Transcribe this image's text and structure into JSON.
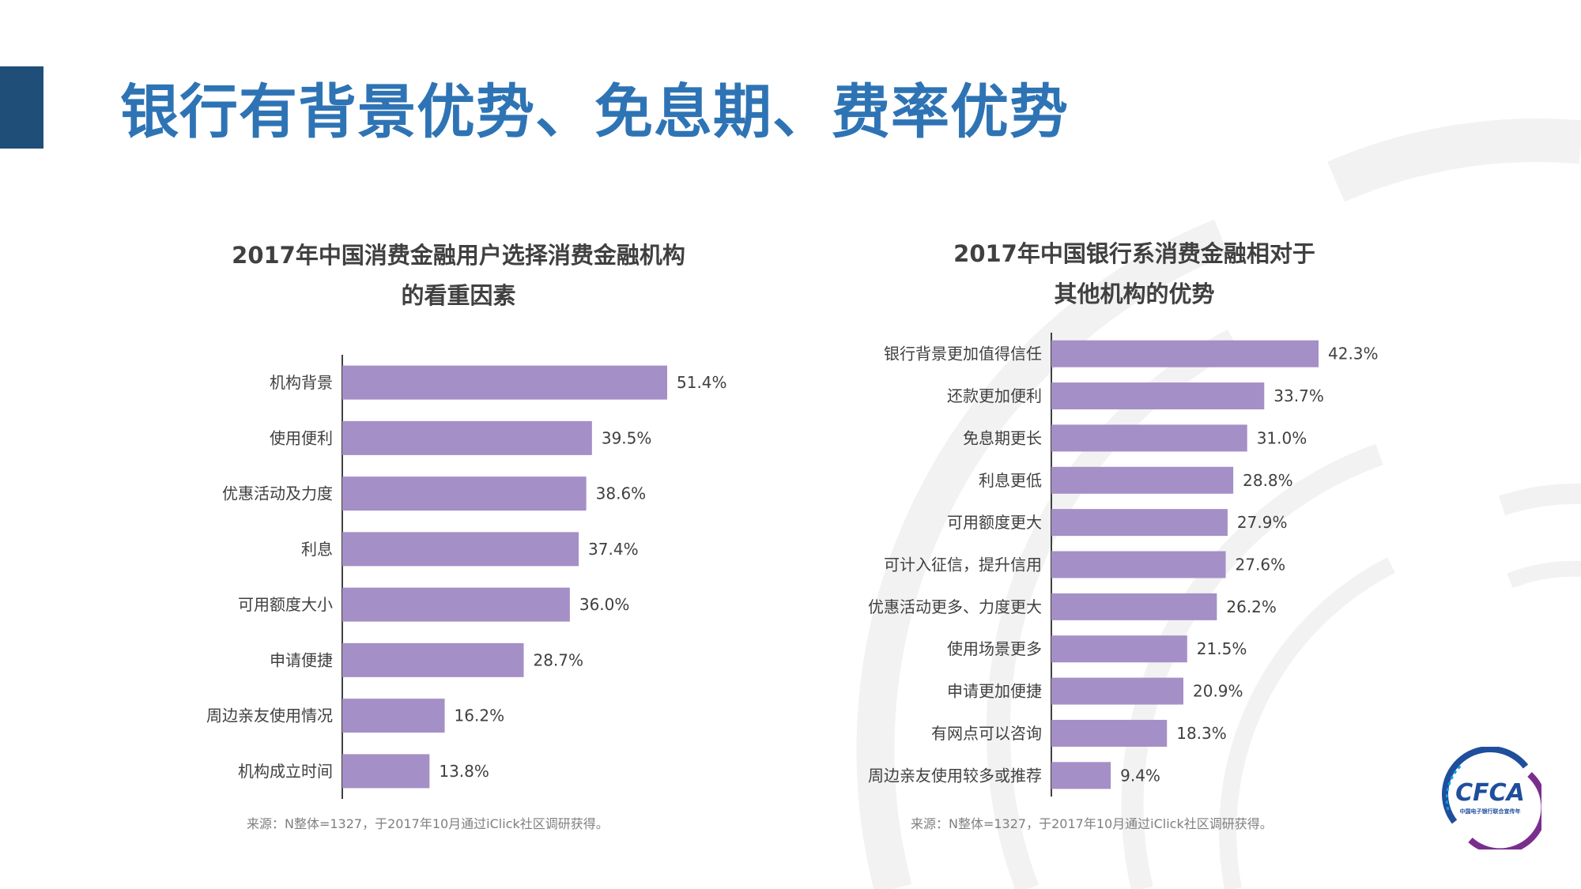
{
  "page": {
    "title": "银行有背景优势、免息期、费率优势"
  },
  "colors": {
    "bar": "#a48fc6",
    "title": "#2e74b5",
    "accent": "#1f4e79",
    "text": "#404040",
    "source": "#7f7f7f"
  },
  "chart_data": [
    {
      "type": "bar",
      "orientation": "horizontal",
      "title_line1": "2017年中国消费金融用户选择消费金融机构",
      "title_line2": "的看重因素",
      "categories": [
        "机构背景",
        "使用便利",
        "优惠活动及力度",
        "利息",
        "可用额度大小",
        "申请便捷",
        "周边亲友使用情况",
        "机构成立时间"
      ],
      "values": [
        51.4,
        39.5,
        38.6,
        37.4,
        36.0,
        28.7,
        16.2,
        13.8
      ],
      "labels": [
        "51.4%",
        "39.5%",
        "38.6%",
        "37.4%",
        "36.0%",
        "28.7%",
        "16.2%",
        "13.8%"
      ],
      "xlim": [
        0,
        51.4
      ],
      "grid": false,
      "source": "来源：N整体=1327，于2017年10月通过iClick社区调研获得。"
    },
    {
      "type": "bar",
      "orientation": "horizontal",
      "title_line1": "2017年中国银行系消费金融相对于",
      "title_line2": "其他机构的优势",
      "categories": [
        "银行背景更加值得信任",
        "还款更加便利",
        "免息期更长",
        "利息更低",
        "可用额度更大",
        "可计入征信，提升信用",
        "优惠活动更多、力度更大",
        "使用场景更多",
        "申请更加便捷",
        "有网点可以咨询",
        "周边亲友使用较多或推荐"
      ],
      "values": [
        42.3,
        33.7,
        31.0,
        28.8,
        27.9,
        27.6,
        26.2,
        21.5,
        20.9,
        18.3,
        9.4
      ],
      "labels": [
        "42.3%",
        "33.7%",
        "31.0%",
        "28.8%",
        "27.9%",
        "27.6%",
        "26.2%",
        "21.5%",
        "20.9%",
        "18.3%",
        "9.4%"
      ],
      "xlim": [
        0,
        42.3
      ],
      "grid": false,
      "source": "来源：N整体=1327，于2017年10月通过iClick社区调研获得。"
    }
  ],
  "logo": {
    "text": "CFCA",
    "subtitle": "中国电子银行联合宣传年"
  }
}
